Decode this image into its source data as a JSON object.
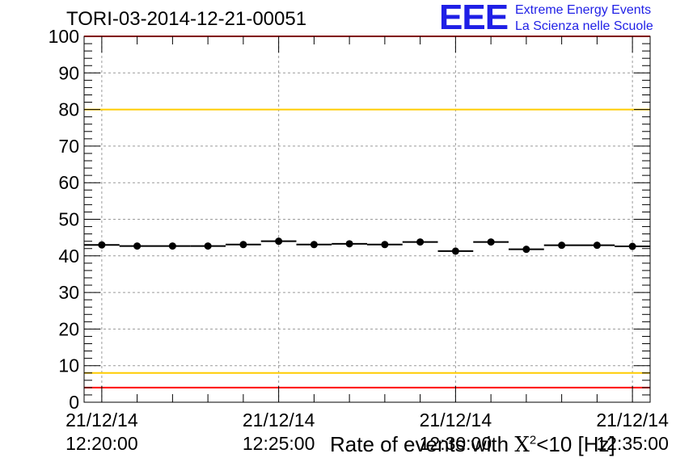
{
  "header": {
    "title": "TORI-03-2014-12-21-00051"
  },
  "logo": {
    "mark": "EEE",
    "line1": "Extreme Energy Events",
    "line2": "La Scienza nelle Scuole"
  },
  "chart_data": {
    "type": "scatter",
    "title": "TORI-03-2014-12-21-00051",
    "ylabel_prefix": "Rate of events with ",
    "ylabel_chi": "X",
    "ylabel_sup": "2",
    "ylabel_suffix": "<10 [Hz]",
    "ylim": [
      0,
      100
    ],
    "yticks": [
      0,
      10,
      20,
      30,
      40,
      50,
      60,
      70,
      80,
      90,
      100
    ],
    "x_time_range": [
      "12:19:30",
      "12:35:30"
    ],
    "xticks": [
      {
        "t": "12:20:00",
        "date": "21/12/14",
        "time": "12:20:00"
      },
      {
        "t": "12:25:00",
        "date": "21/12/14",
        "time": "12:25:00"
      },
      {
        "t": "12:30:00",
        "date": "21/12/14",
        "time": "12:30:00"
      },
      {
        "t": "12:35:00",
        "date": "21/12/14",
        "time": "12:35:00"
      }
    ],
    "grid": true,
    "point_color": "#000000",
    "bin_width_seconds": 60,
    "points": [
      {
        "x": "12:20:00",
        "y": 43.0
      },
      {
        "x": "12:21:00",
        "y": 42.7
      },
      {
        "x": "12:22:00",
        "y": 42.7
      },
      {
        "x": "12:23:00",
        "y": 42.7
      },
      {
        "x": "12:24:00",
        "y": 43.1
      },
      {
        "x": "12:25:00",
        "y": 44.0
      },
      {
        "x": "12:26:00",
        "y": 43.1
      },
      {
        "x": "12:27:00",
        "y": 43.3
      },
      {
        "x": "12:28:00",
        "y": 43.1
      },
      {
        "x": "12:29:00",
        "y": 43.8
      },
      {
        "x": "12:30:00",
        "y": 41.3
      },
      {
        "x": "12:31:00",
        "y": 43.8
      },
      {
        "x": "12:32:00",
        "y": 41.8
      },
      {
        "x": "12:33:00",
        "y": 42.9
      },
      {
        "x": "12:34:00",
        "y": 42.9
      },
      {
        "x": "12:35:00",
        "y": 42.6
      }
    ],
    "reference_lines": [
      {
        "y": 100,
        "color": "#ff0000"
      },
      {
        "y": 80,
        "color": "#ffcc00"
      },
      {
        "y": 8,
        "color": "#ffcc00"
      },
      {
        "y": 4,
        "color": "#ff0000"
      }
    ]
  }
}
